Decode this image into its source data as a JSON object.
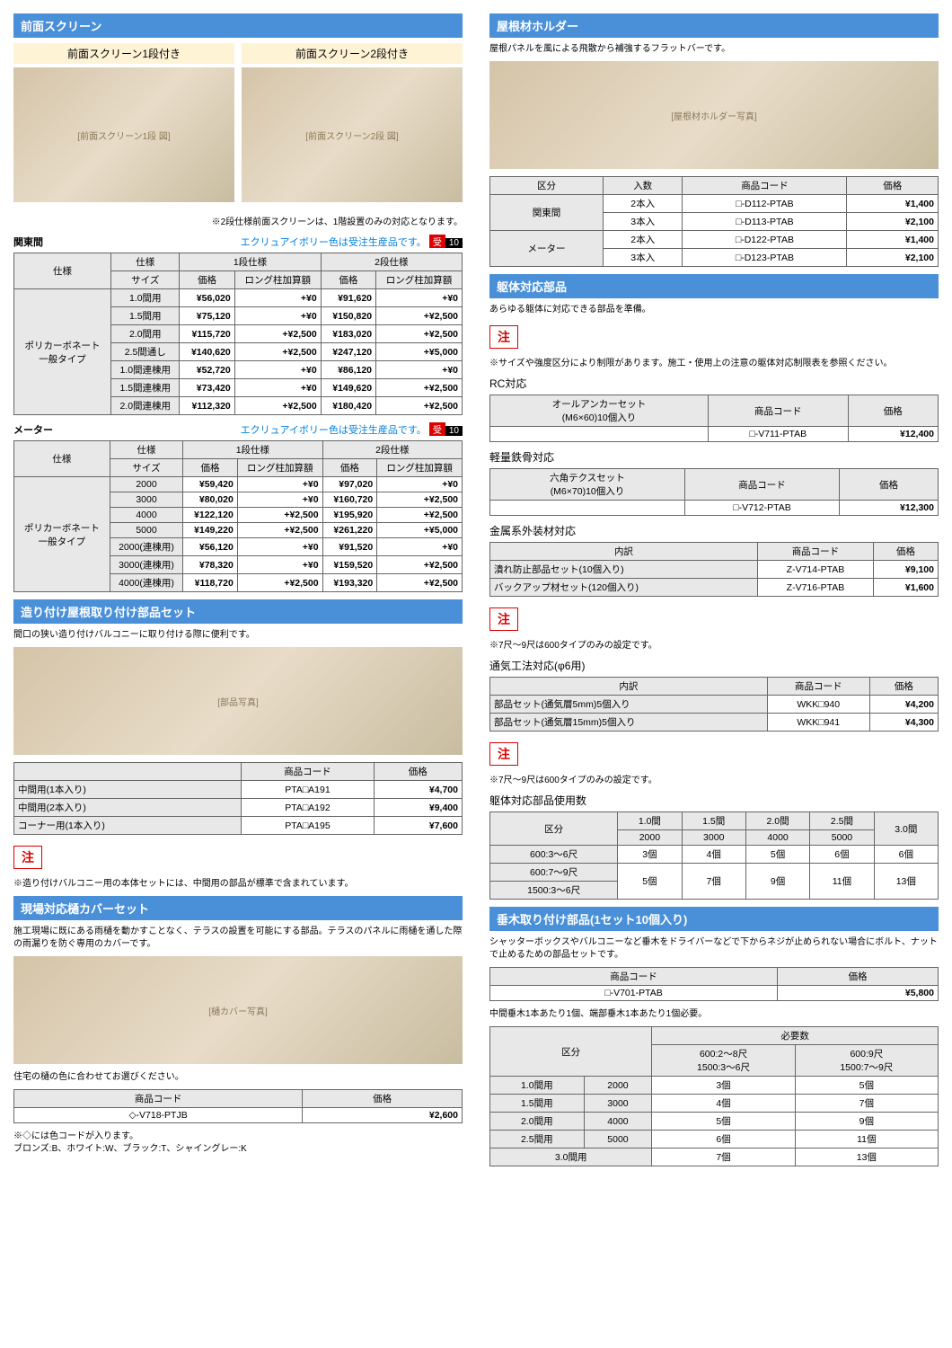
{
  "left": {
    "screen": {
      "title": "前面スクリーン",
      "sub1": "前面スクリーン1段付き",
      "sub2": "前面スクリーン2段付き",
      "note1": "※2段仕様前面スクリーンは、1階設置のみの対応となります。",
      "notice": "エクリュアイボリー色は受注生産品です。",
      "badge1": "受",
      "badge2": "10",
      "kanto_label": "関東間",
      "meter_label": "メーター",
      "th": {
        "spec": "仕様",
        "size": "サイズ",
        "s1": "1段仕様",
        "s2": "2段仕様",
        "price": "価格",
        "long": "ロング柱加算額"
      },
      "material": "ポリカーボネート\n一般タイプ",
      "kanto_rows": [
        {
          "size": "1.0間用",
          "p1": "¥56,020",
          "l1": "+¥0",
          "p2": "¥91,620",
          "l2": "+¥0"
        },
        {
          "size": "1.5間用",
          "p1": "¥75,120",
          "l1": "+¥0",
          "p2": "¥150,820",
          "l2": "+¥2,500"
        },
        {
          "size": "2.0間用",
          "p1": "¥115,720",
          "l1": "+¥2,500",
          "p2": "¥183,020",
          "l2": "+¥2,500"
        },
        {
          "size": "2.5間通し",
          "p1": "¥140,620",
          "l1": "+¥2,500",
          "p2": "¥247,120",
          "l2": "+¥5,000"
        },
        {
          "size": "1.0間連棟用",
          "p1": "¥52,720",
          "l1": "+¥0",
          "p2": "¥86,120",
          "l2": "+¥0"
        },
        {
          "size": "1.5間連棟用",
          "p1": "¥73,420",
          "l1": "+¥0",
          "p2": "¥149,620",
          "l2": "+¥2,500"
        },
        {
          "size": "2.0間連棟用",
          "p1": "¥112,320",
          "l1": "+¥2,500",
          "p2": "¥180,420",
          "l2": "+¥2,500"
        }
      ],
      "meter_rows": [
        {
          "size": "2000",
          "p1": "¥59,420",
          "l1": "+¥0",
          "p2": "¥97,020",
          "l2": "+¥0"
        },
        {
          "size": "3000",
          "p1": "¥80,020",
          "l1": "+¥0",
          "p2": "¥160,720",
          "l2": "+¥2,500"
        },
        {
          "size": "4000",
          "p1": "¥122,120",
          "l1": "+¥2,500",
          "p2": "¥195,920",
          "l2": "+¥2,500"
        },
        {
          "size": "5000",
          "p1": "¥149,220",
          "l1": "+¥2,500",
          "p2": "¥261,220",
          "l2": "+¥5,000"
        },
        {
          "size": "2000(連棟用)",
          "p1": "¥56,120",
          "l1": "+¥0",
          "p2": "¥91,520",
          "l2": "+¥0"
        },
        {
          "size": "3000(連棟用)",
          "p1": "¥78,320",
          "l1": "+¥0",
          "p2": "¥159,520",
          "l2": "+¥2,500"
        },
        {
          "size": "4000(連棟用)",
          "p1": "¥118,720",
          "l1": "+¥2,500",
          "p2": "¥193,320",
          "l2": "+¥2,500"
        }
      ]
    },
    "roof_parts": {
      "title": "造り付け屋根取り付け部品セット",
      "desc": "間口の狭い造り付けバルコニーに取り付ける際に便利です。",
      "th": {
        "code": "商品コード",
        "price": "価格"
      },
      "rows": [
        {
          "name": "中間用(1本入り)",
          "code": "PTA□A191",
          "price": "¥4,700"
        },
        {
          "name": "中間用(2本入り)",
          "code": "PTA□A192",
          "price": "¥9,400"
        },
        {
          "name": "コーナー用(1本入り)",
          "code": "PTA□A195",
          "price": "¥7,600"
        }
      ],
      "warn": "注",
      "warn_text": "※造り付けバルコニー用の本体セットには、中間用の部品が標準で含まれています。"
    },
    "cover": {
      "title": "現場対応樋カバーセット",
      "desc": "施工現場に既にある雨樋を動かすことなく、テラスの設置を可能にする部品。テラスのパネルに雨樋を通した際の雨漏りを防ぐ専用のカバーです。",
      "note": "住宅の樋の色に合わせてお選びください。",
      "th": {
        "code": "商品コード",
        "price": "価格"
      },
      "code": "◇-V718-PTJB",
      "price": "¥2,600",
      "footer": "※◇には色コードが入ります。\nブロンズ:B、ホワイト:W、ブラック:T、シャイングレー:K"
    }
  },
  "right": {
    "holder": {
      "title": "屋根材ホルダー",
      "desc": "屋根パネルを風による飛散から補強するフラットバーです。",
      "th": {
        "kubun": "区分",
        "num": "入数",
        "code": "商品コード",
        "price": "価格"
      },
      "rows": [
        {
          "k": "関東間",
          "k_span": 2,
          "n": "2本入",
          "c": "□-D112-PTAB",
          "p": "¥1,400"
        },
        {
          "k": "",
          "n": "3本入",
          "c": "□-D113-PTAB",
          "p": "¥2,100"
        },
        {
          "k": "メーター",
          "k_span": 2,
          "n": "2本入",
          "c": "□-D122-PTAB",
          "p": "¥1,400"
        },
        {
          "k": "",
          "n": "3本入",
          "c": "□-D123-PTAB",
          "p": "¥2,100"
        }
      ]
    },
    "body_parts": {
      "title": "躯体対応部品",
      "desc": "あらゆる躯体に対応できる部品を準備。",
      "warn": "注",
      "warn_text": "※サイズや強度区分により制限があります。施工・使用上の注意の躯体対応制限表を参照ください。",
      "rc": {
        "label": "RC対応",
        "name": "オールアンカーセット\n(M6×60)10個入り",
        "code": "□-V711-PTAB",
        "price": "¥12,400"
      },
      "steel": {
        "label": "軽量鉄骨対応",
        "name": "六角テクスセット\n(M6×70)10個入り",
        "code": "□-V712-PTAB",
        "price": "¥12,300"
      },
      "metal": {
        "label": "金属系外装材対応",
        "th_n": "内訳",
        "rows": [
          {
            "n": "潰れ防止部品セット(10個入り)",
            "c": "Z-V714-PTAB",
            "p": "¥9,100"
          },
          {
            "n": "バックアップ材セット(120個入り)",
            "c": "Z-V716-PTAB",
            "p": "¥1,600"
          }
        ],
        "warn": "注",
        "warn_text": "※7尺〜9尺は600タイプのみの設定です。"
      },
      "vent": {
        "label": "通気工法対応(φ6用)",
        "rows": [
          {
            "n": "部品セット(通気層5mm)5個入り",
            "c": "WKK□940",
            "p": "¥4,200"
          },
          {
            "n": "部品セット(通気層15mm)5個入り",
            "c": "WKK□941",
            "p": "¥4,300"
          }
        ],
        "warn": "注",
        "warn_text": "※7尺〜9尺は600タイプのみの設定です。"
      },
      "usage": {
        "label": "躯体対応部品使用数",
        "th": {
          "kubun": "区分",
          "c1": "1.0間",
          "c2": "1.5間",
          "c3": "2.0間",
          "c4": "2.5間",
          "c5": "3.0間",
          "s1": "2000",
          "s2": "3000",
          "s3": "4000",
          "s4": "5000"
        },
        "rows": [
          {
            "k": "600:3〜6尺",
            "v": [
              "3個",
              "4個",
              "5個",
              "6個",
              "6個"
            ]
          },
          {
            "k": "600:7〜9尺",
            "v": [
              "5個",
              "7個",
              "9個",
              "11個",
              "13個"
            ],
            "merge": true
          },
          {
            "k": "1500:3〜6尺",
            "v": []
          }
        ]
      }
    },
    "taruki": {
      "title": "垂木取り付け部品(1セット10個入り)",
      "desc": "シャッターボックスやバルコニーなど垂木をドライバーなどで下からネジが止められない場合にボルト、ナットで止めるための部品セットです。",
      "th": {
        "code": "商品コード",
        "price": "価格"
      },
      "code": "□-V701-PTAB",
      "price": "¥5,800",
      "note": "中間垂木1本あたり1個、端部垂木1本あたり1個必要。",
      "req": {
        "th": {
          "kubun": "区分",
          "need": "必要数",
          "c1": "600:2〜8尺\n1500:3〜6尺",
          "c2": "600:9尺\n1500:7〜9尺"
        },
        "rows": [
          {
            "k1": "1.0間用",
            "k2": "2000",
            "v1": "3個",
            "v2": "5個"
          },
          {
            "k1": "1.5間用",
            "k2": "3000",
            "v1": "4個",
            "v2": "7個"
          },
          {
            "k1": "2.0間用",
            "k2": "4000",
            "v1": "5個",
            "v2": "9個"
          },
          {
            "k1": "2.5間用",
            "k2": "5000",
            "v1": "6個",
            "v2": "11個"
          },
          {
            "k1": "3.0間用",
            "k2": "",
            "v1": "7個",
            "v2": "13個",
            "span": true
          }
        ]
      }
    },
    "common_th": {
      "code": "商品コード",
      "price": "価格",
      "naiwake": "内訳"
    }
  }
}
